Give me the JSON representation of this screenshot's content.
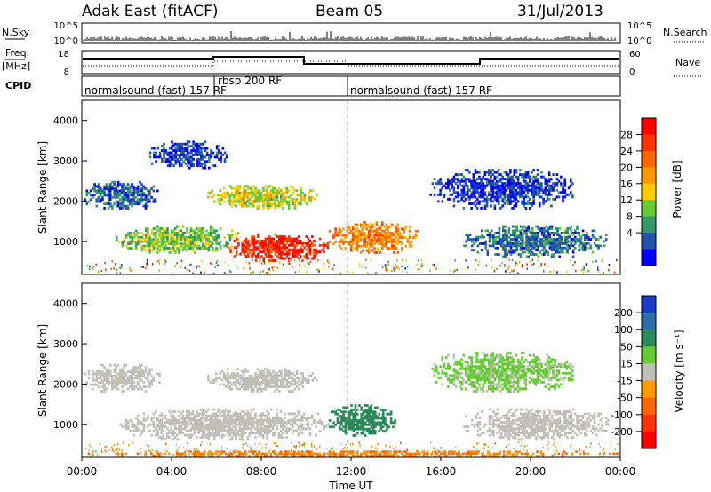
{
  "header": {
    "station": "Adak East (fitACF)",
    "beam": "Beam 05",
    "date": "31/Jul/2013"
  },
  "left_labels": {
    "nsky": "N.Sky",
    "freq_line1": "Freq.",
    "freq_line2": "[MHz]",
    "cpid": "CPID"
  },
  "right_labels": {
    "nsearch": "N.Search",
    "nave": "Nave"
  },
  "noise_panel": {
    "left_ticks": [
      "10^5",
      "10^0"
    ],
    "right_ticks": [
      "10^5",
      "10^0"
    ]
  },
  "freq_panel": {
    "left_ticks": [
      "18",
      "8"
    ],
    "right_ticks": [
      "60",
      "0"
    ]
  },
  "cpid_segments": [
    {
      "label": "normalsound (fast) 157 RF",
      "start_h": 0,
      "end_h": 6
    },
    {
      "label": "rbsp 200 RF",
      "start_h": 6,
      "end_h": 12
    },
    {
      "label": "normalsound (fast) 157 RF",
      "start_h": 12,
      "end_h": 24
    }
  ],
  "range_axis": {
    "label": "Slant Range [km]",
    "ticks": [
      "4000",
      "3000",
      "2000",
      "1000"
    ]
  },
  "time_axis": {
    "label": "Time UT",
    "ticks": [
      "00:00",
      "04:00",
      "08:00",
      "12:00",
      "16:00",
      "20:00",
      "00:00"
    ]
  },
  "power_scale": {
    "label": "Power [dB]",
    "ticks": [
      "28",
      "24",
      "20",
      "16",
      "12",
      "8",
      "4"
    ],
    "colors": [
      "#ff0000",
      "#ff3300",
      "#ff6600",
      "#ff9900",
      "#ffcc00",
      "#66cc33",
      "#339966",
      "#2255aa",
      "#0000ff"
    ]
  },
  "velocity_scale": {
    "label": "Velocity [m s⁻¹]",
    "ticks": [
      "200",
      "100",
      "50",
      "15",
      "-15",
      "-50",
      "-100",
      "-200"
    ],
    "colors": [
      "#1a3bcc",
      "#2a6fa8",
      "#2a8a5a",
      "#66cc33",
      "#c0c0b8",
      "#ff9900",
      "#ff6600",
      "#ff3300",
      "#ff0000"
    ]
  },
  "chart_data": [
    {
      "type": "heatmap",
      "title": "Power",
      "xlabel": "Time UT",
      "ylabel": "Slant Range [km]",
      "xlim": [
        "00:00",
        "24:00"
      ],
      "ylim": [
        180,
        4500
      ],
      "zlabel": "Power [dB]",
      "regions": [
        {
          "start_h": 0.0,
          "end_h": 3.5,
          "range_km": [
            1800,
            2500
          ],
          "power_db": 8
        },
        {
          "start_h": 3.0,
          "end_h": 6.5,
          "range_km": [
            2800,
            3500
          ],
          "power_db": 6
        },
        {
          "start_h": 5.5,
          "end_h": 10.5,
          "range_km": [
            1800,
            2400
          ],
          "power_db": 16
        },
        {
          "start_h": 1.5,
          "end_h": 7.0,
          "range_km": [
            700,
            1400
          ],
          "power_db": 14
        },
        {
          "start_h": 6.5,
          "end_h": 11.0,
          "range_km": [
            500,
            1200
          ],
          "power_db": 28
        },
        {
          "start_h": 11.0,
          "end_h": 15.0,
          "range_km": [
            700,
            1500
          ],
          "power_db": 22
        },
        {
          "start_h": 15.5,
          "end_h": 22.0,
          "range_km": [
            1800,
            2800
          ],
          "power_db": 6
        },
        {
          "start_h": 17.0,
          "end_h": 23.5,
          "range_km": [
            600,
            1400
          ],
          "power_db": 9
        }
      ]
    },
    {
      "type": "heatmap",
      "title": "Velocity",
      "xlabel": "Time UT",
      "ylabel": "Slant Range [km]",
      "xlim": [
        "00:00",
        "24:00"
      ],
      "ylim": [
        180,
        4500
      ],
      "zlabel": "Velocity [m s⁻¹]",
      "regions": [
        {
          "start_h": 0.0,
          "end_h": 3.5,
          "range_km": [
            1800,
            2500
          ],
          "velocity": 0
        },
        {
          "start_h": 5.5,
          "end_h": 10.5,
          "range_km": [
            1800,
            2400
          ],
          "velocity": 0
        },
        {
          "start_h": 1.5,
          "end_h": 11.0,
          "range_km": [
            600,
            1400
          ],
          "velocity": 0
        },
        {
          "start_h": 11.0,
          "end_h": 14.0,
          "range_km": [
            700,
            1500
          ],
          "velocity": 40
        },
        {
          "start_h": 15.5,
          "end_h": 22.0,
          "range_km": [
            1800,
            2800
          ],
          "velocity": 20
        },
        {
          "start_h": 17.0,
          "end_h": 23.5,
          "range_km": [
            600,
            1400
          ],
          "velocity": 0
        },
        {
          "start_h": 0.0,
          "end_h": 24.0,
          "range_km": [
            200,
            350
          ],
          "velocity": -50
        }
      ]
    }
  ]
}
